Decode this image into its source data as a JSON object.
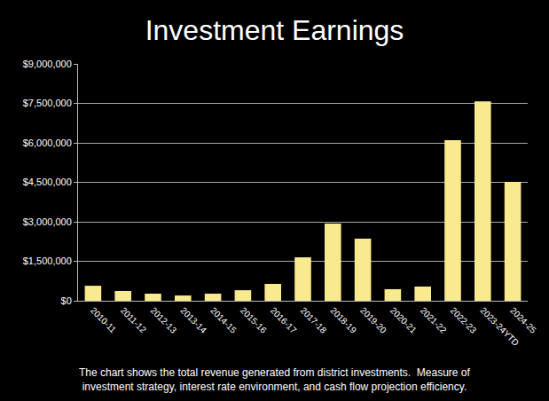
{
  "chart_data": {
    "type": "bar",
    "title": "Investment Earnings",
    "categories": [
      "2010-11",
      "2011-12",
      "2012-13",
      "2013-14",
      "2014-15",
      "2015-16",
      "2016-17",
      "2017-18",
      "2018-19",
      "2019-20",
      "2020-21",
      "2021-22",
      "2022-23",
      "2023-24YTD",
      "2024-25"
    ],
    "values": [
      570000,
      370000,
      270000,
      200000,
      270000,
      400000,
      640000,
      1650000,
      2930000,
      2360000,
      440000,
      540000,
      6100000,
      7580000,
      4520000
    ],
    "color": "#f9e98f",
    "ylim": [
      0,
      9000000
    ],
    "yticks": [
      {
        "value": 0,
        "label": "$0"
      },
      {
        "value": 1500000,
        "label": "$1,500,000"
      },
      {
        "value": 3000000,
        "label": "$3,000,000"
      },
      {
        "value": 4500000,
        "label": "$4,500,000"
      },
      {
        "value": 6000000,
        "label": "$6,000,000"
      },
      {
        "value": 7500000,
        "label": "$7,500,000"
      },
      {
        "value": 9000000,
        "label": "$9,000,000"
      }
    ],
    "grid": true,
    "annotations": [
      "The chart shows the total revenue generated from district investments.  Measure of",
      "investment strategy, interest rate environment, and cash flow projection efficiency."
    ]
  }
}
